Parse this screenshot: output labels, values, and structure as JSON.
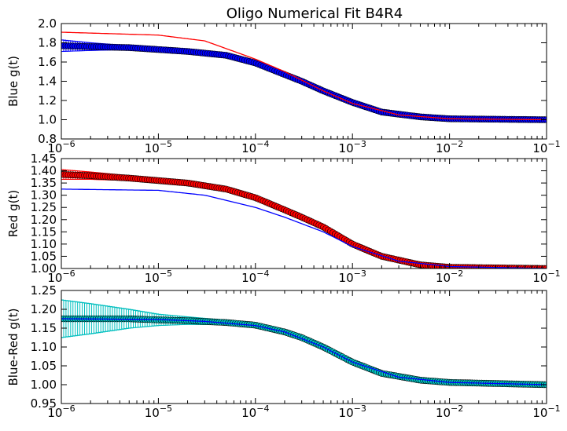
{
  "chart_data": [
    {
      "type": "scatter",
      "title": "Oligo Numerical Fit B4R4",
      "xlabel": "",
      "ylabel": "Blue g(t)",
      "xscale": "log",
      "xlim": [
        1e-06,
        0.1
      ],
      "ylim": [
        0.8,
        2.0
      ],
      "yticks": [
        "0.8",
        "1.0",
        "1.2",
        "1.4",
        "1.6",
        "1.8",
        "2.0"
      ],
      "grid": false,
      "series": [
        {
          "role": "data-with-errorbars",
          "marker_color": "#0000ff",
          "error_color": "#0000ff",
          "x": [
            1e-06,
            2e-06,
            5e-06,
            1e-05,
            2e-05,
            5e-05,
            0.0001,
            0.0002,
            0.0003,
            0.0005,
            0.001,
            0.002,
            0.005,
            0.01,
            0.1
          ],
          "y": [
            1.77,
            1.76,
            1.75,
            1.73,
            1.71,
            1.67,
            1.59,
            1.47,
            1.4,
            1.3,
            1.18,
            1.08,
            1.03,
            1.01,
            1.0
          ],
          "yerr": [
            0.06,
            0.04,
            0.02,
            0.015,
            0.01,
            0.008,
            0.006,
            0.005,
            0.005,
            0.004,
            0.004,
            0.003,
            0.003,
            0.003,
            0.002
          ]
        },
        {
          "role": "fit",
          "line_color": "#ff0000",
          "x": [
            1e-06,
            1e-05,
            3e-05,
            0.0001,
            0.0002,
            0.0005,
            0.001,
            0.003,
            0.01,
            0.1
          ],
          "y": [
            1.91,
            1.88,
            1.82,
            1.63,
            1.5,
            1.3,
            1.17,
            1.05,
            1.01,
            1.0
          ]
        }
      ]
    },
    {
      "type": "scatter",
      "title": "",
      "xlabel": "",
      "ylabel": "Red g(t)",
      "xscale": "log",
      "xlim": [
        1e-06,
        0.1
      ],
      "ylim": [
        1.0,
        1.45
      ],
      "yticks": [
        "1.00",
        "1.05",
        "1.10",
        "1.15",
        "1.20",
        "1.25",
        "1.30",
        "1.35",
        "1.40",
        "1.45"
      ],
      "grid": false,
      "series": [
        {
          "role": "data-with-errorbars",
          "marker_color": "#ff0000",
          "error_color": "#ff0000",
          "x": [
            1e-06,
            2e-06,
            5e-06,
            1e-05,
            2e-05,
            5e-05,
            0.0001,
            0.0002,
            0.0003,
            0.0005,
            0.001,
            0.002,
            0.005,
            0.01,
            0.1
          ],
          "y": [
            1.385,
            1.38,
            1.37,
            1.36,
            1.35,
            1.325,
            1.29,
            1.24,
            1.21,
            1.17,
            1.1,
            1.05,
            1.015,
            1.005,
            1.0
          ],
          "yerr": [
            0.02,
            0.015,
            0.01,
            0.008,
            0.006,
            0.005,
            0.004,
            0.003,
            0.003,
            0.003,
            0.003,
            0.002,
            0.002,
            0.002,
            0.002
          ]
        },
        {
          "role": "fit",
          "line_color": "#0000ff",
          "x": [
            1e-06,
            1e-05,
            3e-05,
            0.0001,
            0.0002,
            0.0005,
            0.001,
            0.003,
            0.01,
            0.1
          ],
          "y": [
            1.325,
            1.32,
            1.3,
            1.25,
            1.21,
            1.15,
            1.09,
            1.03,
            1.008,
            1.0
          ]
        }
      ]
    },
    {
      "type": "scatter",
      "title": "",
      "xlabel": "",
      "ylabel": "Blue-Red g(t)",
      "xscale": "log",
      "xlim": [
        1e-06,
        0.1
      ],
      "ylim": [
        0.95,
        1.25
      ],
      "yticks": [
        "0.95",
        "1.00",
        "1.05",
        "1.10",
        "1.15",
        "1.20",
        "1.25"
      ],
      "grid": false,
      "series": [
        {
          "role": "data-with-errorbars",
          "marker_color": "#00bfbf",
          "error_color": "#00bfbf",
          "x": [
            1e-06,
            2e-06,
            5e-06,
            1e-05,
            2e-05,
            5e-05,
            0.0001,
            0.0002,
            0.0003,
            0.0005,
            0.001,
            0.002,
            0.005,
            0.01,
            0.1
          ],
          "y": [
            1.175,
            1.175,
            1.175,
            1.172,
            1.17,
            1.165,
            1.158,
            1.14,
            1.125,
            1.1,
            1.06,
            1.03,
            1.012,
            1.006,
            1.0
          ],
          "yerr": [
            0.05,
            0.04,
            0.025,
            0.015,
            0.01,
            0.006,
            0.005,
            0.004,
            0.004,
            0.004,
            0.003,
            0.003,
            0.003,
            0.003,
            0.003
          ]
        },
        {
          "role": "fit",
          "line_color": "#0000ff",
          "x": [
            1e-06,
            1e-05,
            3e-05,
            0.0001,
            0.0002,
            0.0005,
            0.001,
            0.003,
            0.01,
            0.1
          ],
          "y": [
            1.175,
            1.173,
            1.168,
            1.157,
            1.14,
            1.1,
            1.06,
            1.02,
            1.006,
            1.0
          ]
        }
      ]
    }
  ]
}
